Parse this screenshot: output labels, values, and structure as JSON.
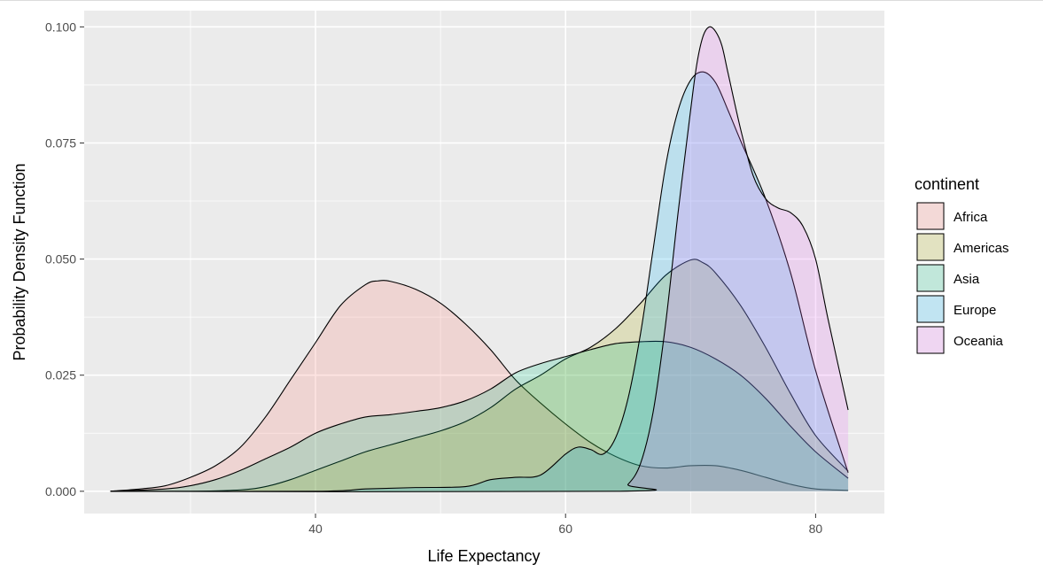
{
  "chart_data": {
    "type": "area",
    "subtype": "density",
    "title": "",
    "xlabel": "Life Expectancy",
    "ylabel": "Probability Density Function",
    "xlim": [
      21.5,
      85.5
    ],
    "ylim": [
      -0.0048,
      0.1035
    ],
    "x_ticks": [
      40,
      60,
      80
    ],
    "x_tick_labels": [
      "40",
      "60",
      "80"
    ],
    "y_ticks": [
      0,
      0.025,
      0.05,
      0.075,
      0.1
    ],
    "y_tick_labels": [
      "0.000",
      "0.025",
      "0.050",
      "0.075",
      "0.100"
    ],
    "grid": true,
    "legend": {
      "title": "continent",
      "position": "right"
    },
    "series": [
      {
        "name": "Africa",
        "color": "#F8766D",
        "x": [
          23.6,
          26,
          28,
          30,
          32,
          34,
          36,
          38,
          40,
          42,
          44,
          45,
          46,
          48,
          50,
          52,
          54,
          56,
          58,
          60,
          62,
          64,
          66,
          68,
          70,
          72,
          74,
          76,
          78,
          80,
          82.6
        ],
        "y": [
          0,
          0.0005,
          0.0012,
          0.003,
          0.0055,
          0.0095,
          0.016,
          0.024,
          0.032,
          0.04,
          0.0445,
          0.0453,
          0.0452,
          0.0435,
          0.0405,
          0.036,
          0.0305,
          0.024,
          0.019,
          0.0145,
          0.0105,
          0.0075,
          0.0055,
          0.005,
          0.0055,
          0.0055,
          0.0045,
          0.003,
          0.0015,
          0.0005,
          0.0002
        ]
      },
      {
        "name": "Americas",
        "color": "#A3A500",
        "x": [
          23.6,
          30,
          34,
          36,
          38,
          40,
          42,
          44,
          46,
          48,
          50,
          52,
          54,
          56,
          58,
          60,
          62,
          64,
          66,
          68,
          70,
          71,
          72,
          74,
          76,
          78,
          80,
          82.6
        ],
        "y": [
          0,
          0,
          0.0003,
          0.001,
          0.0025,
          0.0045,
          0.0065,
          0.0085,
          0.01,
          0.0115,
          0.013,
          0.015,
          0.018,
          0.022,
          0.025,
          0.0285,
          0.031,
          0.035,
          0.0405,
          0.0465,
          0.0498,
          0.0492,
          0.047,
          0.04,
          0.031,
          0.021,
          0.012,
          0.0043
        ]
      },
      {
        "name": "Asia",
        "color": "#00BF7D",
        "x": [
          23.6,
          28,
          30,
          32,
          34,
          36,
          38,
          40,
          42,
          44,
          46,
          48,
          50,
          52,
          54,
          56,
          58,
          60,
          62,
          64,
          66,
          68,
          70,
          72,
          74,
          76,
          78,
          80,
          82.6
        ],
        "y": [
          0,
          0.0005,
          0.0012,
          0.0025,
          0.0045,
          0.007,
          0.0095,
          0.0125,
          0.0145,
          0.016,
          0.0165,
          0.0172,
          0.018,
          0.0195,
          0.022,
          0.0255,
          0.0275,
          0.029,
          0.0305,
          0.0318,
          0.0322,
          0.0322,
          0.031,
          0.0285,
          0.025,
          0.02,
          0.014,
          0.0085,
          0.0028
        ]
      },
      {
        "name": "Europe",
        "color": "#00B0F6",
        "x": [
          23.6,
          40,
          44,
          48,
          52,
          54,
          56,
          58,
          60,
          61,
          62,
          63,
          64,
          65,
          66,
          67,
          68,
          69,
          70,
          71,
          72,
          73,
          74,
          76,
          78,
          80,
          82.6
        ],
        "y": [
          0,
          0,
          0.0005,
          0.0008,
          0.001,
          0.0025,
          0.003,
          0.0035,
          0.008,
          0.0095,
          0.009,
          0.008,
          0.0115,
          0.02,
          0.034,
          0.052,
          0.07,
          0.082,
          0.0885,
          0.0903,
          0.088,
          0.082,
          0.0755,
          0.063,
          0.047,
          0.026,
          0.004
        ]
      },
      {
        "name": "Oceania",
        "color": "#E76BF3",
        "x": [
          23.6,
          64,
          65,
          66,
          67,
          68,
          69,
          70,
          70.5,
          71,
          71.5,
          72,
          72.5,
          73,
          74,
          75,
          76,
          77,
          78,
          79,
          80,
          81,
          82.6
        ],
        "y": [
          0,
          0,
          0.0015,
          0.006,
          0.017,
          0.036,
          0.06,
          0.082,
          0.092,
          0.098,
          0.1,
          0.099,
          0.096,
          0.09,
          0.078,
          0.068,
          0.063,
          0.061,
          0.06,
          0.057,
          0.05,
          0.037,
          0.0175
        ]
      }
    ]
  }
}
